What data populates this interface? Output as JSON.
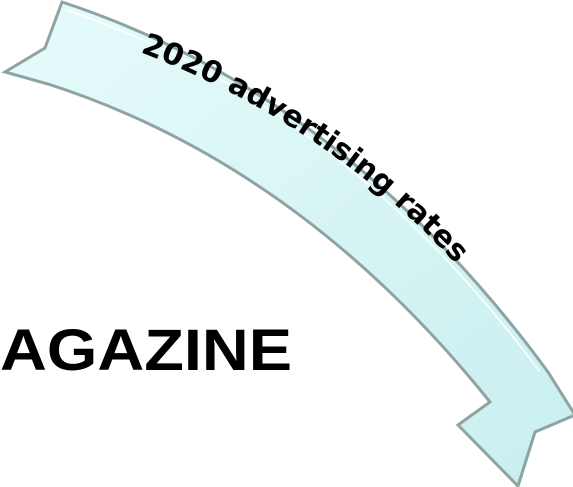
{
  "banner": {
    "text": "2020 advertising rates"
  },
  "heading": {
    "text": "AGAZINE"
  }
}
